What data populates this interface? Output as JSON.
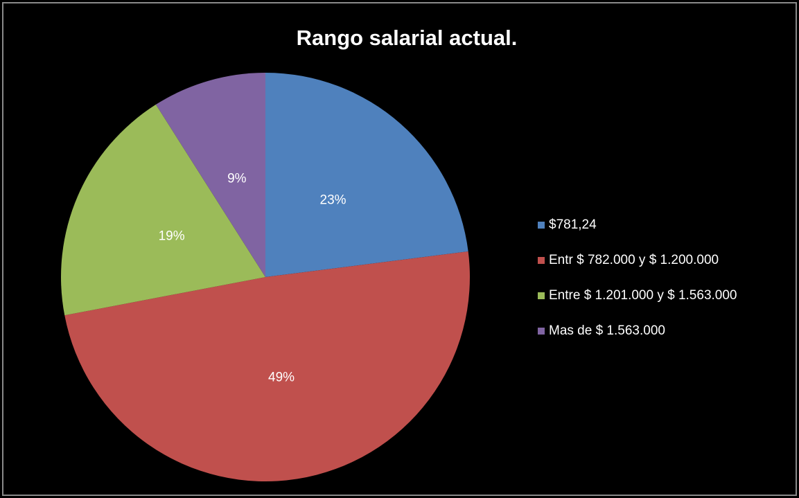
{
  "chart_data": {
    "type": "pie",
    "title": "Rango salarial actual.",
    "categories": [
      "$781,24",
      "Entr $ 782.000 y $ 1.200.000",
      "Entre $ 1.201.000 y $ 1.563.000",
      "Mas de $ 1.563.000"
    ],
    "values": [
      23,
      49,
      19,
      9
    ],
    "value_labels": [
      "23%",
      "49%",
      "19%",
      "9%"
    ],
    "colors": [
      "#4f81bd",
      "#c0504d",
      "#9bbb59",
      "#8064a2"
    ],
    "legend": "right"
  }
}
